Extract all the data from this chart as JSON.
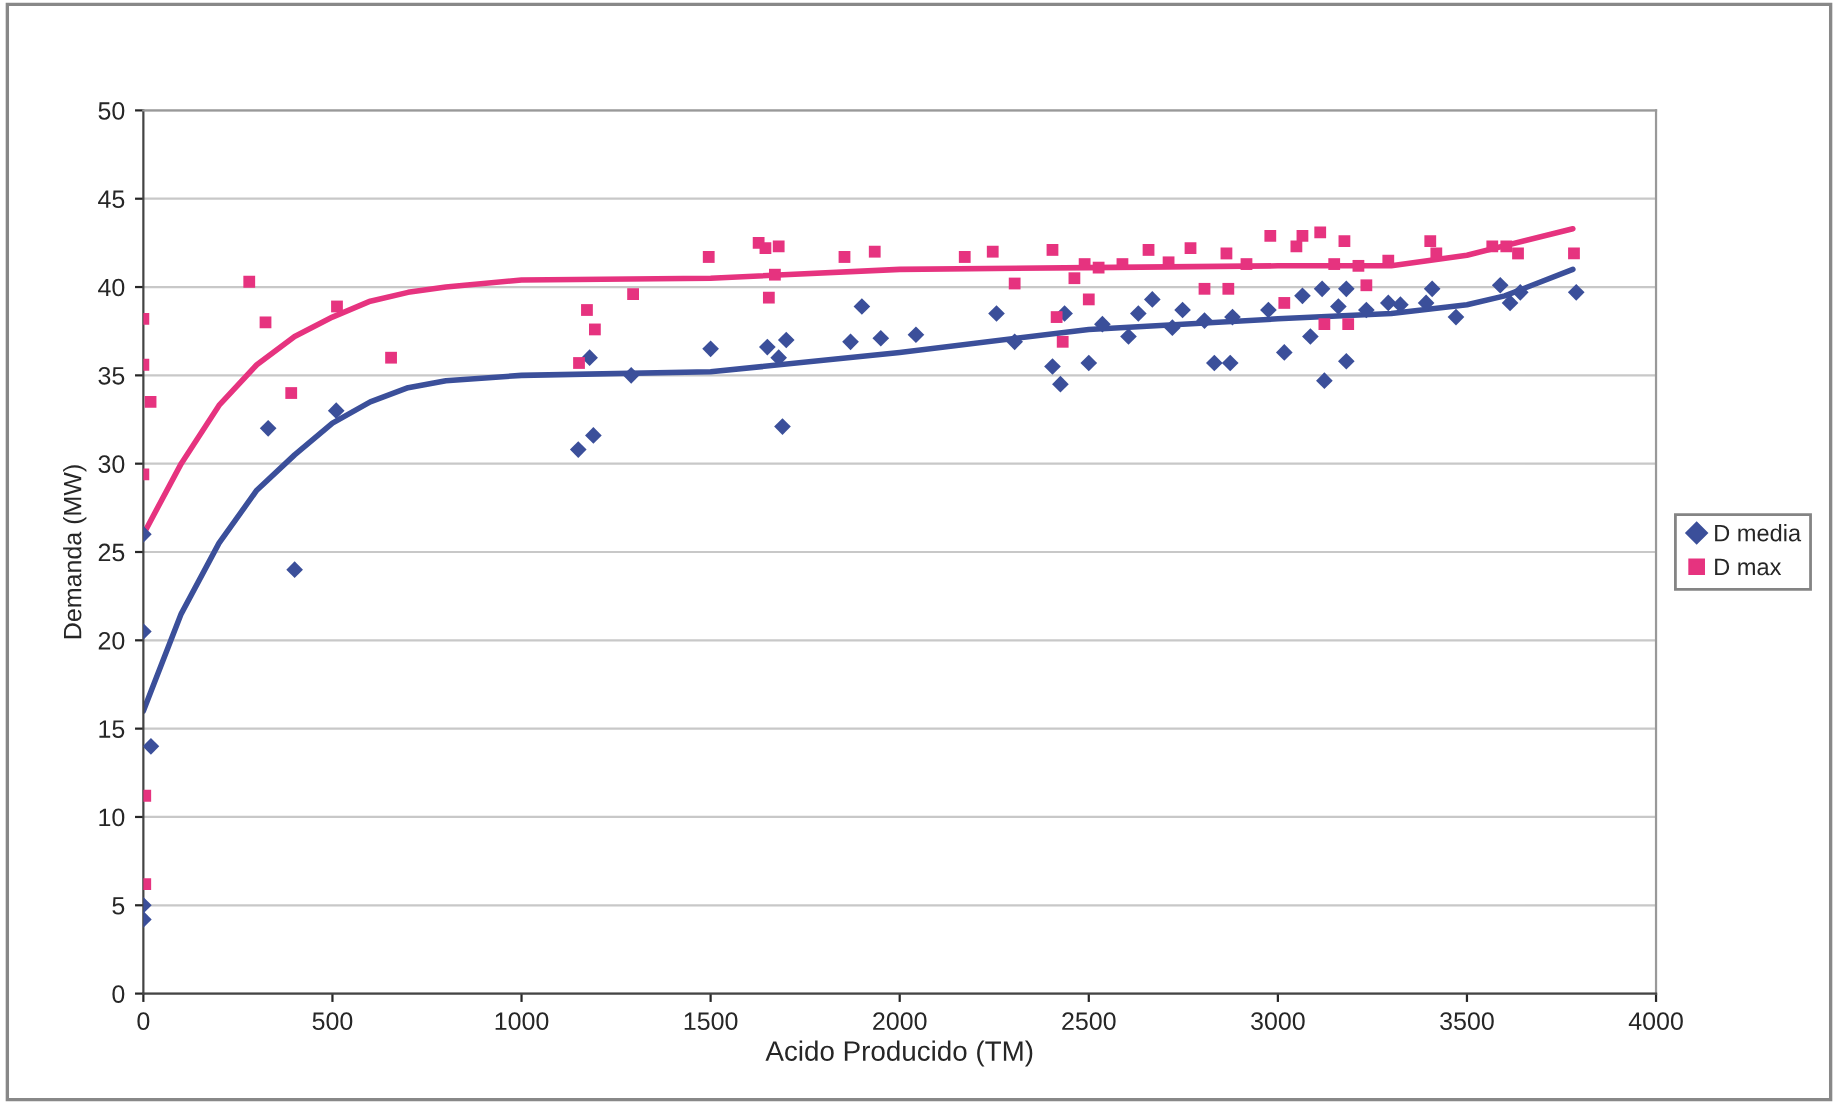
{
  "chart_data": {
    "type": "scatter",
    "xlabel": "Acido Producido (TM)",
    "ylabel": "Demanda (MW)",
    "xlim": [
      0,
      4000
    ],
    "xticks": [
      0,
      500,
      1000,
      1500,
      2000,
      2500,
      3000,
      3500,
      4000
    ],
    "ylim": [
      0,
      50
    ],
    "yticks": [
      0,
      5,
      10,
      15,
      20,
      25,
      30,
      35,
      40,
      45,
      50
    ],
    "grid": "y",
    "legend": "right",
    "series": [
      {
        "name": "D media",
        "marker": "diamond",
        "color": "#3b4f9a",
        "x": [
          0,
          0,
          0,
          0,
          20,
          330,
          400,
          510,
          1150,
          1190,
          1180,
          1290,
          1500,
          1650,
          1680,
          1700,
          1690,
          1870,
          1900,
          1950,
          2043,
          2256,
          2304,
          2404,
          2425,
          2436,
          2500,
          2536,
          2605,
          2631,
          2668,
          2721,
          2748,
          2806,
          2832,
          2874,
          2880,
          2975,
          3017,
          3065,
          3086,
          3117,
          3123,
          3160,
          3181,
          3181,
          3234,
          3292,
          3324,
          3392,
          3408,
          3471,
          3588,
          3614,
          3641,
          3789
        ],
        "values": [
          4.2,
          5,
          20.5,
          26,
          14,
          32,
          24,
          33,
          30.8,
          31.6,
          36,
          35,
          36.5,
          36.6,
          36,
          37,
          32.1,
          36.9,
          38.9,
          37.1,
          37.3,
          38.5,
          36.9,
          35.5,
          34.5,
          38.5,
          35.7,
          37.9,
          37.2,
          38.5,
          39.3,
          37.7,
          38.7,
          38.1,
          35.7,
          35.7,
          38.3,
          38.7,
          36.3,
          39.5,
          37.2,
          39.9,
          34.7,
          38.9,
          39.9,
          35.8,
          38.7,
          39.1,
          39,
          39.1,
          39.9,
          38.3,
          40.1,
          39.1,
          39.7,
          39.7
        ]
      },
      {
        "name": "D max",
        "marker": "square",
        "color": "#e6337f",
        "x": [
          0,
          0,
          19,
          0,
          5,
          5,
          280,
          323,
          391,
          512,
          655,
          1152,
          1173,
          1194,
          1295,
          1495,
          1627,
          1645,
          1680,
          1654,
          1670,
          1854,
          1934,
          2172,
          2246,
          2304,
          2404,
          2415,
          2431,
          2462,
          2489,
          2500,
          2526,
          2589,
          2658,
          2711,
          2769,
          2806,
          2864,
          2869,
          2917,
          2980,
          3017,
          3049,
          3065,
          3112,
          3123,
          3149,
          3176,
          3186,
          3213,
          3234,
          3292,
          3403,
          3419,
          3567,
          3604,
          3635,
          3783
        ],
        "values": [
          38.2,
          35.6,
          33.5,
          29.4,
          11.2,
          6.2,
          40.3,
          38,
          34,
          38.9,
          36,
          35.7,
          38.7,
          37.6,
          39.6,
          41.7,
          42.5,
          42.2,
          42.3,
          39.4,
          40.7,
          41.7,
          42,
          41.7,
          42,
          40.2,
          42.1,
          38.3,
          36.9,
          40.5,
          41.3,
          39.3,
          41.1,
          41.3,
          42.1,
          41.4,
          42.2,
          39.9,
          41.9,
          39.9,
          41.3,
          42.9,
          39.1,
          42.3,
          42.9,
          43.1,
          37.9,
          41.3,
          42.6,
          37.9,
          41.2,
          40.1,
          41.5,
          42.6,
          41.9,
          42.3,
          42.3,
          41.9,
          41.9
        ]
      },
      {
        "type": "line",
        "color": "#3b4f9a",
        "x": [
          0,
          100,
          200,
          300,
          400,
          500,
          600,
          700,
          800,
          1000,
          1500,
          2000,
          2500,
          3000,
          3300,
          3500,
          3600,
          3780
        ],
        "values": [
          16,
          21.5,
          25.5,
          28.5,
          30.5,
          32.3,
          33.5,
          34.3,
          34.7,
          35,
          35.2,
          36.3,
          37.6,
          38.2,
          38.5,
          39,
          39.5,
          41
        ]
      },
      {
        "type": "line",
        "color": "#e6337f",
        "x": [
          0,
          100,
          200,
          300,
          400,
          500,
          600,
          700,
          800,
          1000,
          1500,
          2000,
          2500,
          3000,
          3300,
          3500,
          3780
        ],
        "values": [
          26,
          30,
          33.3,
          35.6,
          37.2,
          38.3,
          39.2,
          39.7,
          40,
          40.4,
          40.5,
          41,
          41.1,
          41.2,
          41.2,
          41.8,
          43.3
        ]
      }
    ]
  }
}
